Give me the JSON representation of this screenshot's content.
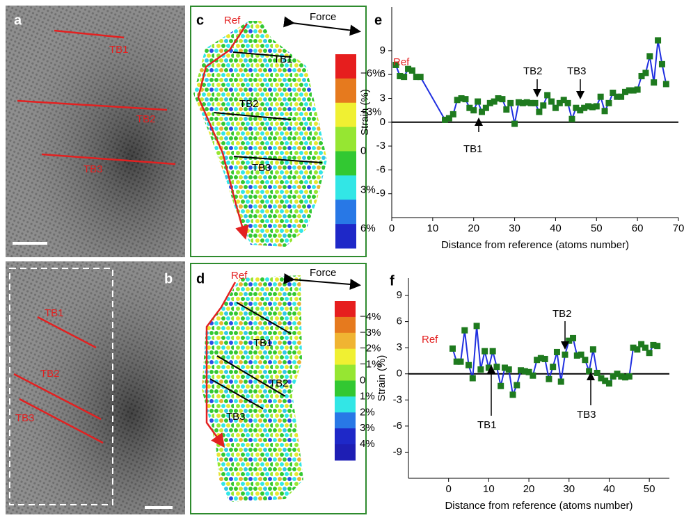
{
  "panels": {
    "a": {
      "label": "a",
      "annotations": [
        "TB1",
        "TB2",
        "TB3"
      ]
    },
    "b": {
      "label": "b",
      "annotations": [
        "TB1",
        "TB2",
        "TB3"
      ]
    },
    "c": {
      "label": "c",
      "ref": "Ref",
      "force": "Force",
      "annotations": [
        "TB1",
        "TB2",
        "TB3"
      ],
      "colorbar": [
        "−6%",
        "−3%",
        "0",
        "3%",
        "6%"
      ]
    },
    "d": {
      "label": "d",
      "ref": "Ref",
      "force": "Force",
      "annotations": [
        "TB1",
        "TB2",
        "TB3"
      ],
      "colorbar": [
        "−4%",
        "−3%",
        "−2%",
        "−1%",
        "0",
        "1%",
        "2%",
        "3%",
        "4%"
      ]
    }
  },
  "chart_data": [
    {
      "type": "line",
      "label": "e",
      "xlabel": "Distance from reference (atoms number)",
      "ylabel": "Strain (%)",
      "annotations": [
        "Ref",
        "TB1",
        "TB2",
        "TB3"
      ],
      "x": [
        1,
        2,
        3,
        4,
        5,
        6,
        7,
        13,
        14,
        15,
        16,
        17,
        18,
        19,
        20,
        21,
        22,
        23,
        24,
        25,
        26,
        27,
        28,
        29,
        30,
        31,
        32,
        33,
        34,
        35,
        36,
        37,
        38,
        39,
        40,
        41,
        42,
        43,
        44,
        45,
        46,
        47,
        48,
        49,
        50,
        51,
        52,
        53,
        54,
        55,
        56,
        57,
        58,
        59,
        60,
        61,
        62,
        63,
        64,
        65,
        66,
        67
      ],
      "series": [
        {
          "color": "#1f2fe0",
          "marker_color": "#1e7a1e",
          "values": [
            7.2,
            5.8,
            5.7,
            6.7,
            6.5,
            5.7,
            5.7,
            0.3,
            0.5,
            1.0,
            2.8,
            3.0,
            2.9,
            1.8,
            1.5,
            2.6,
            1.3,
            1.8,
            2.4,
            2.6,
            3.0,
            2.9,
            1.6,
            2.4,
            -0.2,
            2.5,
            2.4,
            2.5,
            2.4,
            2.4,
            1.3,
            2.1,
            3.4,
            2.6,
            1.8,
            2.4,
            2.8,
            2.4,
            0.4,
            1.8,
            1.5,
            1.8,
            2.0,
            1.9,
            2.0,
            3.2,
            1.4,
            2.4,
            3.7,
            3.2,
            3.2,
            3.8,
            4.0,
            4.0,
            4.1,
            5.8,
            6.2,
            8.3,
            5.0,
            10.3,
            7.3,
            4.8
          ]
        }
      ],
      "xlim": [
        0,
        70
      ],
      "xticks": [
        0,
        10,
        20,
        30,
        40,
        50,
        60,
        70
      ],
      "ylim": [
        -12,
        14.5
      ],
      "yticks": [
        -9,
        -6,
        -3,
        0,
        3,
        6,
        9
      ]
    },
    {
      "type": "line",
      "label": "f",
      "xlabel": "Distance from reference (atoms number)",
      "ylabel": "Strain (%)",
      "annotations": [
        "Ref",
        "TB1",
        "TB2",
        "TB3"
      ],
      "x": [
        1,
        2,
        3,
        4,
        5,
        6,
        7,
        8,
        9,
        10,
        11,
        12,
        13,
        14,
        15,
        16,
        17,
        18,
        19,
        20,
        21,
        22,
        23,
        24,
        25,
        26,
        27,
        28,
        29,
        30,
        31,
        32,
        33,
        34,
        35,
        36,
        37,
        38,
        39,
        40,
        41,
        42,
        43,
        44,
        45,
        46,
        47,
        48,
        49,
        50,
        51,
        52
      ],
      "series": [
        {
          "color": "#1f2fe0",
          "marker_color": "#1e7a1e",
          "values": [
            2.9,
            1.4,
            1.4,
            5.0,
            1.0,
            -0.5,
            5.5,
            0.5,
            2.6,
            0.7,
            2.6,
            0.8,
            -1.4,
            0.7,
            0.5,
            -2.4,
            -1.3,
            0.4,
            0.3,
            0.2,
            -0.2,
            1.6,
            1.8,
            1.7,
            -0.6,
            0.8,
            2.5,
            -0.9,
            2.2,
            3.8,
            4.1,
            2.1,
            2.2,
            1.6,
            0.3,
            2.8,
            0.1,
            -0.5,
            -0.8,
            -1.1,
            -0.3,
            0,
            -0.3,
            -0.4,
            -0.3,
            3.0,
            2.8,
            3.4,
            3.0,
            2.4,
            3.3,
            3.2
          ]
        }
      ],
      "xlim": [
        -10,
        55
      ],
      "xticks": [
        0,
        10,
        20,
        30,
        40,
        50
      ],
      "ylim": [
        -12,
        11
      ],
      "yticks": [
        -9,
        -6,
        -3,
        0,
        3,
        6,
        9
      ]
    }
  ]
}
